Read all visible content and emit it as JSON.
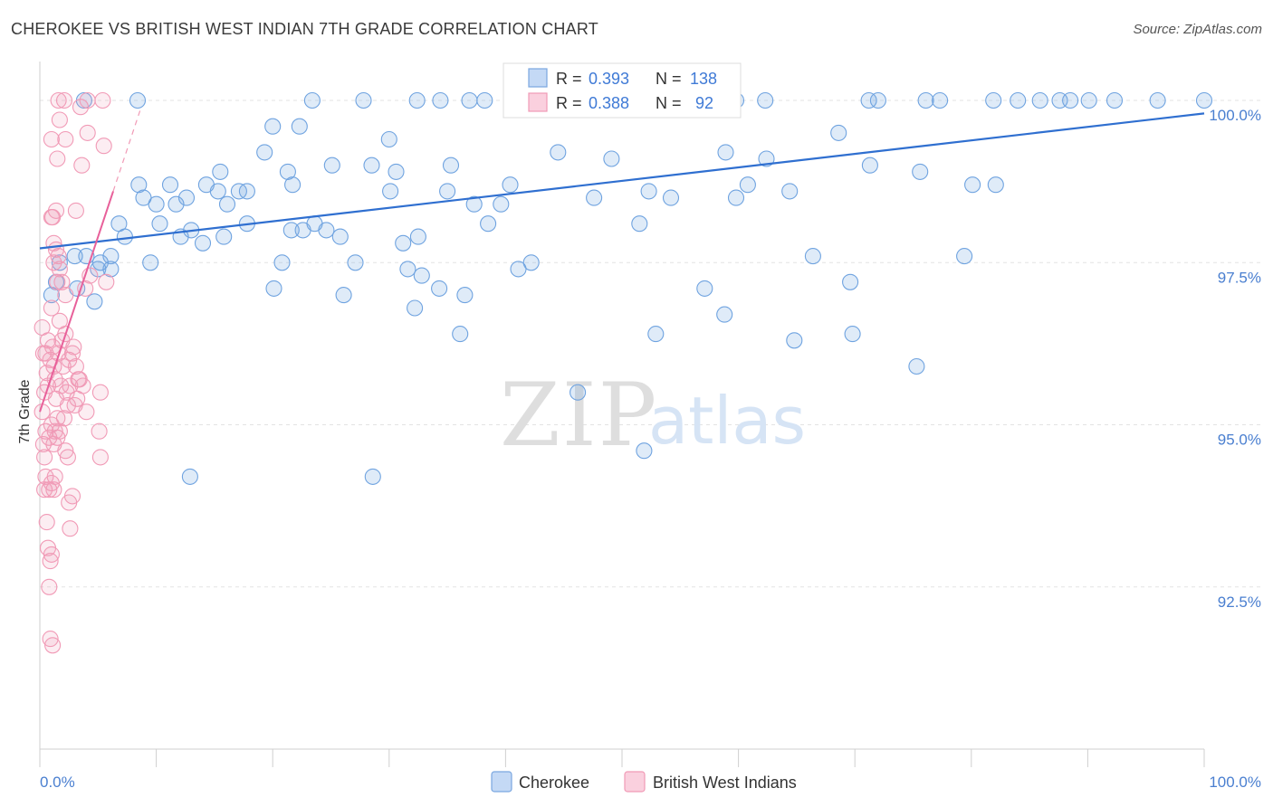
{
  "title": "CHEROKEE VS BRITISH WEST INDIAN 7TH GRADE CORRELATION CHART",
  "source": "Source: ZipAtlas.com",
  "watermark": {
    "zip": "ZIP",
    "atlas": "atlas"
  },
  "chart_data": {
    "type": "scatter",
    "xlabel": "",
    "ylabel": "7th Grade",
    "xlim": [
      0,
      100
    ],
    "ylim": [
      90.0,
      100.6
    ],
    "x_tick_labels": [
      {
        "value": 0,
        "label": "0.0%"
      },
      {
        "value": 100,
        "label": "100.0%"
      }
    ],
    "y_ticks": [
      {
        "value": 92.5,
        "label": "92.5%"
      },
      {
        "value": 95.0,
        "label": "95.0%"
      },
      {
        "value": 97.5,
        "label": "97.5%"
      },
      {
        "value": 100.0,
        "label": "100.0%"
      }
    ],
    "legend_stats": [
      {
        "series": "Cherokee",
        "r_label": "R = ",
        "r": "0.393",
        "n_label": "N = ",
        "n": "138"
      },
      {
        "series": "British West Indians",
        "r_label": "R = ",
        "r": "0.388",
        "n_label": "N = ",
        "n": "92"
      }
    ],
    "series": [
      {
        "name": "Cherokee",
        "color": "#6fa3e0",
        "trend": {
          "x": [
            0,
            100
          ],
          "y": [
            97.72,
            99.8
          ]
        },
        "points": [
          [
            3.8,
            100
          ],
          [
            8.4,
            100
          ],
          [
            23.4,
            100
          ],
          [
            27.8,
            100
          ],
          [
            32.4,
            100
          ],
          [
            34.4,
            100
          ],
          [
            36.9,
            100
          ],
          [
            38.2,
            100
          ],
          [
            42.8,
            100
          ],
          [
            43.0,
            100
          ],
          [
            49.1,
            100
          ],
          [
            51.6,
            100
          ],
          [
            56.1,
            100
          ],
          [
            58.3,
            100
          ],
          [
            59.8,
            100
          ],
          [
            62.3,
            100
          ],
          [
            71.2,
            100
          ],
          [
            72.0,
            100
          ],
          [
            76.1,
            100
          ],
          [
            77.3,
            100
          ],
          [
            81.9,
            100
          ],
          [
            84.0,
            100
          ],
          [
            85.9,
            100
          ],
          [
            87.6,
            100
          ],
          [
            88.5,
            100
          ],
          [
            90.1,
            100
          ],
          [
            92.3,
            100
          ],
          [
            96.0,
            100
          ],
          [
            100,
            100
          ],
          [
            20.0,
            99.6
          ],
          [
            22.3,
            99.6
          ],
          [
            30.0,
            99.4
          ],
          [
            68.6,
            99.5
          ],
          [
            19.3,
            99.2
          ],
          [
            44.5,
            99.2
          ],
          [
            49.1,
            99.1
          ],
          [
            58.9,
            99.2
          ],
          [
            62.4,
            99.1
          ],
          [
            15.5,
            98.9
          ],
          [
            21.3,
            98.9
          ],
          [
            25.1,
            99.0
          ],
          [
            28.5,
            99.0
          ],
          [
            30.6,
            98.9
          ],
          [
            35.3,
            99.0
          ],
          [
            75.6,
            98.9
          ],
          [
            8.5,
            98.7
          ],
          [
            11.2,
            98.7
          ],
          [
            14.3,
            98.7
          ],
          [
            17.1,
            98.6
          ],
          [
            17.8,
            98.6
          ],
          [
            21.7,
            98.7
          ],
          [
            30.1,
            98.6
          ],
          [
            35.0,
            98.6
          ],
          [
            40.4,
            98.7
          ],
          [
            52.3,
            98.6
          ],
          [
            60.8,
            98.7
          ],
          [
            64.4,
            98.6
          ],
          [
            82.1,
            98.7
          ],
          [
            8.9,
            98.5
          ],
          [
            10.0,
            98.4
          ],
          [
            11.7,
            98.4
          ],
          [
            12.6,
            98.5
          ],
          [
            15.3,
            98.6
          ],
          [
            16.1,
            98.4
          ],
          [
            37.3,
            98.4
          ],
          [
            39.6,
            98.4
          ],
          [
            47.6,
            98.5
          ],
          [
            54.2,
            98.5
          ],
          [
            59.8,
            98.5
          ],
          [
            6.8,
            98.1
          ],
          [
            7.3,
            97.9
          ],
          [
            10.3,
            98.1
          ],
          [
            12.1,
            97.9
          ],
          [
            13.0,
            98.0
          ],
          [
            14.0,
            97.8
          ],
          [
            15.8,
            97.9
          ],
          [
            17.8,
            98.1
          ],
          [
            21.6,
            98.0
          ],
          [
            22.6,
            98.0
          ],
          [
            23.6,
            98.1
          ],
          [
            24.6,
            98.0
          ],
          [
            25.8,
            97.9
          ],
          [
            31.2,
            97.8
          ],
          [
            32.5,
            97.9
          ],
          [
            38.5,
            98.1
          ],
          [
            51.5,
            98.1
          ],
          [
            1.7,
            97.5
          ],
          [
            3.0,
            97.6
          ],
          [
            4.0,
            97.6
          ],
          [
            5.2,
            97.5
          ],
          [
            6.1,
            97.6
          ],
          [
            9.5,
            97.5
          ],
          [
            20.8,
            97.5
          ],
          [
            27.1,
            97.5
          ],
          [
            31.6,
            97.4
          ],
          [
            32.8,
            97.3
          ],
          [
            41.1,
            97.4
          ],
          [
            42.2,
            97.5
          ],
          [
            66.4,
            97.6
          ],
          [
            79.4,
            97.6
          ],
          [
            1.0,
            97.0
          ],
          [
            1.4,
            97.2
          ],
          [
            3.2,
            97.1
          ],
          [
            5.0,
            97.4
          ],
          [
            6.1,
            97.4
          ],
          [
            20.1,
            97.1
          ],
          [
            26.1,
            97.0
          ],
          [
            32.2,
            96.8
          ],
          [
            34.3,
            97.1
          ],
          [
            36.5,
            97.0
          ],
          [
            57.1,
            97.1
          ],
          [
            58.8,
            96.7
          ],
          [
            69.6,
            97.2
          ],
          [
            69.8,
            96.4
          ],
          [
            4.7,
            96.9
          ],
          [
            36.1,
            96.4
          ],
          [
            52.9,
            96.4
          ],
          [
            64.8,
            96.3
          ],
          [
            75.3,
            95.9
          ],
          [
            46.2,
            95.5
          ],
          [
            51.9,
            94.6
          ],
          [
            12.9,
            94.2
          ],
          [
            28.6,
            94.2
          ],
          [
            80.1,
            98.7
          ],
          [
            71.3,
            99.0
          ]
        ]
      },
      {
        "name": "British West Indians",
        "color": "#f19ab6",
        "trend": {
          "x": [
            0,
            6.3
          ],
          "y": [
            95.2,
            98.6
          ]
        },
        "points": [
          [
            1.6,
            100
          ],
          [
            2.1,
            100
          ],
          [
            3.5,
            99.9
          ],
          [
            4.1,
            100
          ],
          [
            5.4,
            100
          ],
          [
            1.7,
            99.7
          ],
          [
            1.0,
            99.4
          ],
          [
            2.2,
            99.4
          ],
          [
            4.1,
            99.5
          ],
          [
            5.5,
            99.3
          ],
          [
            1.5,
            99.1
          ],
          [
            3.6,
            99.0
          ],
          [
            1.1,
            98.2
          ],
          [
            1.4,
            98.3
          ],
          [
            1.0,
            98.2
          ],
          [
            3.1,
            98.3
          ],
          [
            1.2,
            97.8
          ],
          [
            1.4,
            97.7
          ],
          [
            1.6,
            97.6
          ],
          [
            1.2,
            97.5
          ],
          [
            1.7,
            97.4
          ],
          [
            1.5,
            97.2
          ],
          [
            1.9,
            97.2
          ],
          [
            2.2,
            97.0
          ],
          [
            3.9,
            97.1
          ],
          [
            4.3,
            97.3
          ],
          [
            5.7,
            97.2
          ],
          [
            1.0,
            96.8
          ],
          [
            1.7,
            96.6
          ],
          [
            2.2,
            96.4
          ],
          [
            0.2,
            96.5
          ],
          [
            0.3,
            96.1
          ],
          [
            0.5,
            96.1
          ],
          [
            1.1,
            96.2
          ],
          [
            1.2,
            95.9
          ],
          [
            1.6,
            96.1
          ],
          [
            2.0,
            95.9
          ],
          [
            1.3,
            95.7
          ],
          [
            2.6,
            95.6
          ],
          [
            3.1,
            95.9
          ],
          [
            3.3,
            95.7
          ],
          [
            2.3,
            95.5
          ],
          [
            1.4,
            95.4
          ],
          [
            0.4,
            95.5
          ],
          [
            0.7,
            95.6
          ],
          [
            0.2,
            95.2
          ],
          [
            1.0,
            95.0
          ],
          [
            1.5,
            95.1
          ],
          [
            2.4,
            95.3
          ],
          [
            3.2,
            95.4
          ],
          [
            5.2,
            95.5
          ],
          [
            0.5,
            94.9
          ],
          [
            0.8,
            94.8
          ],
          [
            1.2,
            94.7
          ],
          [
            1.5,
            94.8
          ],
          [
            1.7,
            94.9
          ],
          [
            2.4,
            94.5
          ],
          [
            5.1,
            94.9
          ],
          [
            5.2,
            94.5
          ],
          [
            0.3,
            94.7
          ],
          [
            0.4,
            94.5
          ],
          [
            0.5,
            94.2
          ],
          [
            1.0,
            94.1
          ],
          [
            1.3,
            94.2
          ],
          [
            0.8,
            94.0
          ],
          [
            1.2,
            94.0
          ],
          [
            2.5,
            93.8
          ],
          [
            2.8,
            93.9
          ],
          [
            0.6,
            93.5
          ],
          [
            2.6,
            93.4
          ],
          [
            0.7,
            93.1
          ],
          [
            0.9,
            92.9
          ],
          [
            0.8,
            92.5
          ],
          [
            0.9,
            91.7
          ],
          [
            1.1,
            91.6
          ],
          [
            2.8,
            96.1
          ],
          [
            3.4,
            95.7
          ],
          [
            4.0,
            95.2
          ],
          [
            1.8,
            95.6
          ],
          [
            0.6,
            95.8
          ],
          [
            0.9,
            96.0
          ],
          [
            2.9,
            96.2
          ],
          [
            3.7,
            95.6
          ],
          [
            2.1,
            95.1
          ],
          [
            1.3,
            94.9
          ],
          [
            2.2,
            94.6
          ],
          [
            0.4,
            94.0
          ],
          [
            1.0,
            93.0
          ],
          [
            0.7,
            96.3
          ],
          [
            1.9,
            96.3
          ],
          [
            2.5,
            96.0
          ],
          [
            3.0,
            95.3
          ]
        ]
      }
    ]
  }
}
